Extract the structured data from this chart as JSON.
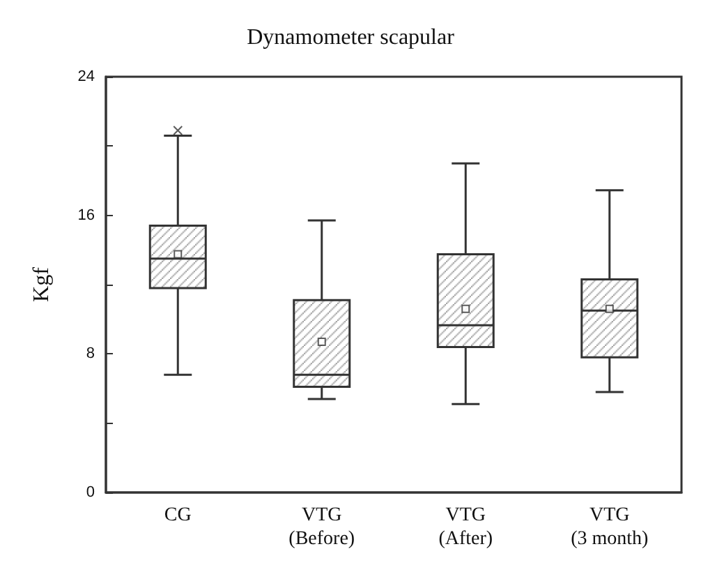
{
  "chart_data": {
    "type": "box",
    "title": "Dynamometer scapular",
    "ylabel": "Kgf",
    "categories": [
      "CG",
      "VTG\n(Before)",
      "VTG\n(After)",
      "VTG\n(3 month)"
    ],
    "boxes": [
      {
        "low": 6.8,
        "q1": 11.8,
        "median": 13.5,
        "q3": 15.4,
        "high": 20.6,
        "mean": 13.75,
        "outliers": [
          20.9
        ]
      },
      {
        "low": 5.4,
        "q1": 6.1,
        "median": 6.8,
        "q3": 11.1,
        "high": 15.7,
        "mean": 8.7
      },
      {
        "low": 5.1,
        "q1": 8.4,
        "median": 9.65,
        "q3": 13.75,
        "high": 19.0,
        "mean": 10.6
      },
      {
        "low": 5.8,
        "q1": 7.8,
        "median": 10.5,
        "q3": 12.3,
        "high": 17.45,
        "mean": 10.6
      }
    ],
    "color": "#333333",
    "ylim": [
      0,
      24
    ],
    "yticks": [
      0,
      {
        "value": 4,
        "label": null
      },
      8,
      {
        "value": 12,
        "label": null
      },
      16,
      {
        "value": 20,
        "label": null
      },
      24
    ],
    "grid": false
  }
}
